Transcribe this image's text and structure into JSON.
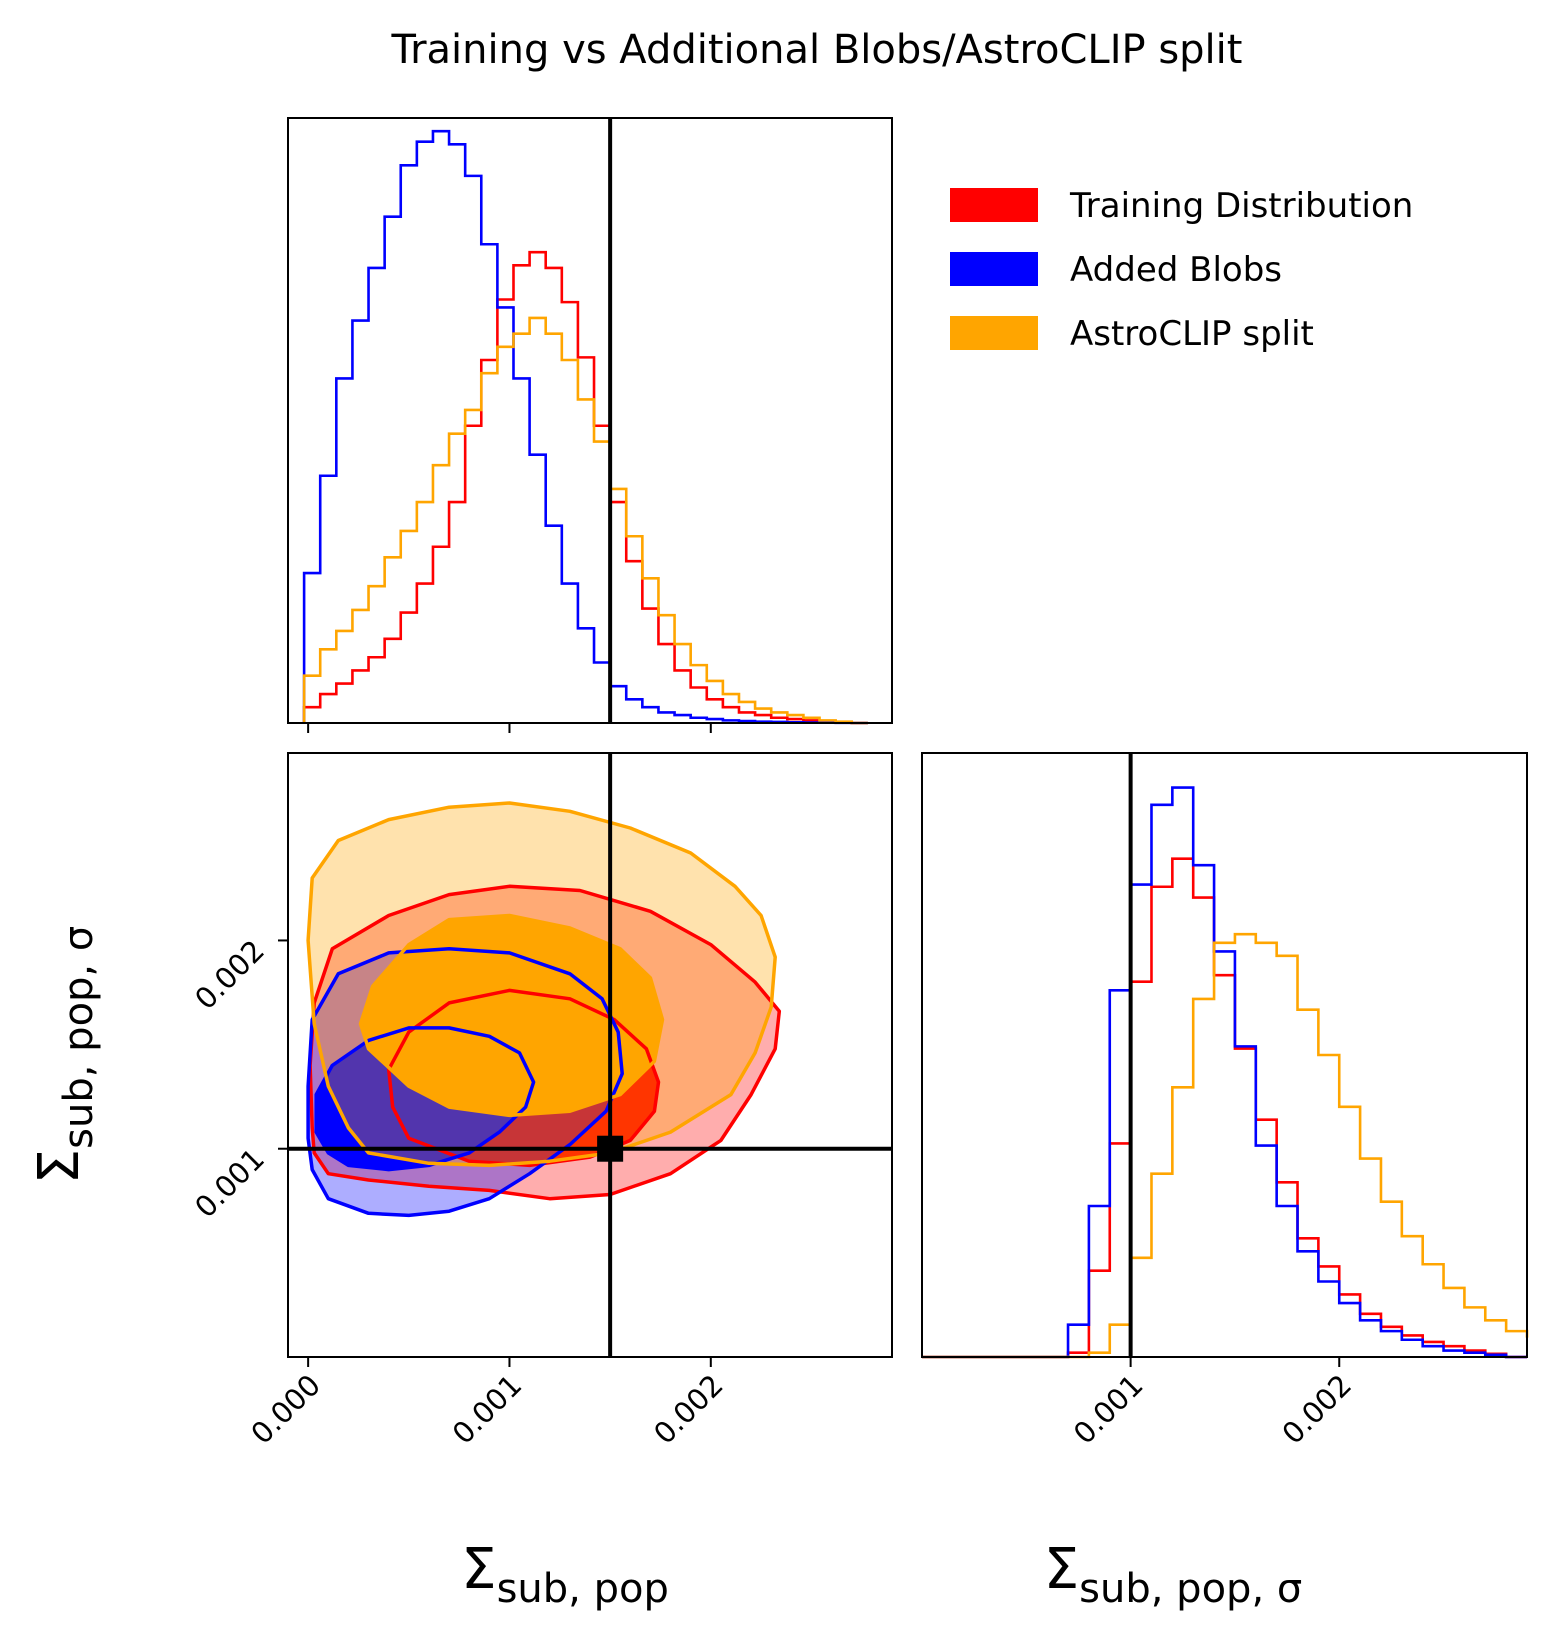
{
  "chart_data": {
    "type": "corner",
    "title": "Training vs Additional Blobs/AstroCLIP split",
    "parameters": [
      {
        "name": "Sigma_sub,pop",
        "label_base": "Σ",
        "label_sub": "sub, pop",
        "range": [
          -0.0001,
          0.0029
        ],
        "ticks": [
          0.0,
          0.001,
          0.002
        ],
        "tick_labels": [
          "0.000",
          "0.001",
          "0.002"
        ],
        "truth": 0.0015
      },
      {
        "name": "Sigma_sub,pop,sigma",
        "label_base": "Σ",
        "label_sub": "sub, pop, σ",
        "range": [
          0.0,
          0.0029
        ],
        "ticks": [
          0.001,
          0.002
        ],
        "tick_labels": [
          "0.001",
          "0.002"
        ],
        "truth": 0.001
      }
    ],
    "legend": {
      "placement": "top-right",
      "entries": [
        {
          "label": "Training Distribution",
          "color": "#ff0000"
        },
        {
          "label": "Added Blobs",
          "color": "#0000ff"
        },
        {
          "label": "AstroCLIP split",
          "color": "#ffa500"
        }
      ]
    },
    "marginal_x": {
      "bin_start": -2e-05,
      "bin_width": 8e-05,
      "series": [
        {
          "name": "Training Distribution",
          "color": "#ff0000",
          "values": [
            0.012,
            0.022,
            0.03,
            0.04,
            0.05,
            0.064,
            0.084,
            0.106,
            0.134,
            0.168,
            0.226,
            0.276,
            0.322,
            0.348,
            0.358,
            0.346,
            0.32,
            0.278,
            0.226,
            0.168,
            0.123,
            0.087,
            0.06,
            0.04,
            0.027,
            0.018,
            0.012,
            0.008,
            0.006,
            0.004,
            0.003,
            0.002,
            0.001,
            0.0005,
            0.0
          ]
        },
        {
          "name": "Added Blobs",
          "color": "#0000ff",
          "values": [
            0.114,
            0.188,
            0.262,
            0.306,
            0.346,
            0.385,
            0.424,
            0.442,
            0.45,
            0.44,
            0.416,
            0.364,
            0.316,
            0.262,
            0.204,
            0.15,
            0.106,
            0.072,
            0.046,
            0.028,
            0.018,
            0.012,
            0.008,
            0.006,
            0.004,
            0.003,
            0.002,
            0.0015,
            0.001,
            0.0008,
            0.0005,
            0.0003,
            0.0002,
            0.0001,
            0.0
          ]
        },
        {
          "name": "AstroCLIP split",
          "color": "#ffa500",
          "values": [
            0.036,
            0.056,
            0.07,
            0.086,
            0.104,
            0.126,
            0.146,
            0.168,
            0.196,
            0.22,
            0.238,
            0.266,
            0.286,
            0.296,
            0.308,
            0.296,
            0.276,
            0.246,
            0.214,
            0.178,
            0.142,
            0.11,
            0.082,
            0.06,
            0.044,
            0.032,
            0.022,
            0.016,
            0.011,
            0.008,
            0.006,
            0.004,
            0.002,
            0.001,
            0.0
          ]
        }
      ]
    },
    "marginal_y": {
      "bin_start": 0.0006,
      "bin_width": 0.0001,
      "series": [
        {
          "name": "Training Distribution",
          "color": "#ff0000",
          "values": [
            0.0,
            0.004,
            0.08,
            0.198,
            0.348,
            0.436,
            0.462,
            0.426,
            0.354,
            0.286,
            0.22,
            0.162,
            0.11,
            0.084,
            0.058,
            0.04,
            0.028,
            0.02,
            0.014,
            0.01,
            0.006,
            0.003,
            0.0
          ]
        },
        {
          "name": "Added Blobs",
          "color": "#0000ff",
          "values": [
            0.0,
            0.03,
            0.14,
            0.34,
            0.438,
            0.512,
            0.528,
            0.456,
            0.376,
            0.288,
            0.196,
            0.14,
            0.098,
            0.07,
            0.05,
            0.034,
            0.024,
            0.016,
            0.01,
            0.006,
            0.004,
            0.002,
            0.0
          ]
        },
        {
          "name": "AstroCLIP split",
          "color": "#ffa500",
          "values": [
            0.0,
            0.0,
            0.004,
            0.03,
            0.092,
            0.17,
            0.25,
            0.332,
            0.384,
            0.392,
            0.384,
            0.372,
            0.322,
            0.28,
            0.232,
            0.184,
            0.144,
            0.112,
            0.086,
            0.064,
            0.046,
            0.034,
            0.024,
            0.018
          ]
        }
      ]
    },
    "contours_2d": [
      {
        "name": "Training Distribution",
        "color": "#ff0000",
        "level": "outer",
        "points": [
          [
            3e-05,
            0.00098
          ],
          [
            0.0001,
            0.00088
          ],
          [
            0.0003,
            0.00085
          ],
          [
            0.0006,
            0.00082
          ],
          [
            0.0009,
            0.0008
          ],
          [
            0.0012,
            0.00076
          ],
          [
            0.0015,
            0.00078
          ],
          [
            0.0018,
            0.00088
          ],
          [
            0.00205,
            0.00104
          ],
          [
            0.0022,
            0.00126
          ],
          [
            0.00232,
            0.00148
          ],
          [
            0.00234,
            0.00166
          ],
          [
            0.00222,
            0.0018
          ],
          [
            0.002,
            0.00198
          ],
          [
            0.0017,
            0.00214
          ],
          [
            0.00135,
            0.00224
          ],
          [
            0.001,
            0.00226
          ],
          [
            0.0007,
            0.00222
          ],
          [
            0.0004,
            0.00212
          ],
          [
            0.00012,
            0.00196
          ],
          [
            3e-05,
            0.0017
          ],
          [
            1e-05,
            0.0014
          ],
          [
            2e-05,
            0.0011
          ]
        ]
      },
      {
        "name": "Training Distribution",
        "color": "#ff0000",
        "level": "inner",
        "points": [
          [
            0.0005,
            0.00105
          ],
          [
            0.0008,
            0.00094
          ],
          [
            0.0011,
            0.00092
          ],
          [
            0.0014,
            0.00096
          ],
          [
            0.0016,
            0.00104
          ],
          [
            0.00172,
            0.00118
          ],
          [
            0.00174,
            0.00132
          ],
          [
            0.00168,
            0.00148
          ],
          [
            0.00152,
            0.00162
          ],
          [
            0.0013,
            0.00172
          ],
          [
            0.001,
            0.00176
          ],
          [
            0.0007,
            0.0017
          ],
          [
            0.0005,
            0.00156
          ],
          [
            0.0004,
            0.00138
          ],
          [
            0.00042,
            0.0012
          ]
        ]
      },
      {
        "name": "Added Blobs",
        "color": "#0000ff",
        "level": "outer",
        "points": [
          [
            2e-05,
            0.0009
          ],
          [
            0.0001,
            0.00076
          ],
          [
            0.0003,
            0.00069
          ],
          [
            0.0005,
            0.00068
          ],
          [
            0.0007,
            0.0007
          ],
          [
            0.0009,
            0.00076
          ],
          [
            0.0011,
            0.00088
          ],
          [
            0.0013,
            0.00102
          ],
          [
            0.00148,
            0.00118
          ],
          [
            0.00156,
            0.00136
          ],
          [
            0.00154,
            0.00156
          ],
          [
            0.00146,
            0.00172
          ],
          [
            0.0013,
            0.00184
          ],
          [
            0.001,
            0.00194
          ],
          [
            0.0007,
            0.00196
          ],
          [
            0.0004,
            0.00194
          ],
          [
            0.00015,
            0.00184
          ],
          [
            2e-05,
            0.00162
          ],
          [
            0.0,
            0.0013
          ],
          [
            0.0,
            0.00105
          ]
        ]
      },
      {
        "name": "Added Blobs",
        "color": "#0000ff",
        "level": "inner",
        "points": [
          [
            4e-05,
            0.00108
          ],
          [
            0.0001,
            0.00098
          ],
          [
            0.0002,
            0.00092
          ],
          [
            0.0004,
            0.0009
          ],
          [
            0.0006,
            0.00092
          ],
          [
            0.0008,
            0.00098
          ],
          [
            0.00095,
            0.00108
          ],
          [
            0.00108,
            0.0012
          ],
          [
            0.00112,
            0.00132
          ],
          [
            0.00105,
            0.00146
          ],
          [
            0.0009,
            0.00154
          ],
          [
            0.0007,
            0.00158
          ],
          [
            0.0005,
            0.00158
          ],
          [
            0.0003,
            0.00152
          ],
          [
            0.00012,
            0.0014
          ],
          [
            4e-05,
            0.00126
          ]
        ]
      },
      {
        "name": "AstroCLIP split",
        "color": "#ffa500",
        "level": "outer",
        "points": [
          [
            0.0003,
            0.00098
          ],
          [
            0.0006,
            0.00093
          ],
          [
            0.0009,
            0.00092
          ],
          [
            0.0012,
            0.00094
          ],
          [
            0.0015,
            0.00098
          ],
          [
            0.0018,
            0.00108
          ],
          [
            0.0021,
            0.00126
          ],
          [
            0.00222,
            0.00146
          ],
          [
            0.0023,
            0.00168
          ],
          [
            0.00232,
            0.00192
          ],
          [
            0.00225,
            0.00212
          ],
          [
            0.00212,
            0.00226
          ],
          [
            0.0019,
            0.00242
          ],
          [
            0.0016,
            0.00254
          ],
          [
            0.0013,
            0.00262
          ],
          [
            0.001,
            0.00266
          ],
          [
            0.0007,
            0.00264
          ],
          [
            0.0004,
            0.00258
          ],
          [
            0.00015,
            0.00248
          ],
          [
            2e-05,
            0.0023
          ],
          [
            0.0,
            0.002
          ],
          [
            3e-05,
            0.0016
          ],
          [
            0.0001,
            0.0013
          ],
          [
            0.0002,
            0.0011
          ]
        ]
      },
      {
        "name": "AstroCLIP split",
        "color": "#ffa500",
        "level": "inner",
        "points": [
          [
            0.0003,
            0.00148
          ],
          [
            0.0005,
            0.0013
          ],
          [
            0.0007,
            0.0012
          ],
          [
            0.001,
            0.00116
          ],
          [
            0.0013,
            0.00118
          ],
          [
            0.00155,
            0.00126
          ],
          [
            0.00172,
            0.00142
          ],
          [
            0.00176,
            0.00162
          ],
          [
            0.0017,
            0.00182
          ],
          [
            0.00155,
            0.00196
          ],
          [
            0.0013,
            0.00206
          ],
          [
            0.001,
            0.00212
          ],
          [
            0.0007,
            0.0021
          ],
          [
            0.0005,
            0.00198
          ],
          [
            0.00032,
            0.00178
          ],
          [
            0.00026,
            0.0016
          ]
        ]
      }
    ]
  }
}
